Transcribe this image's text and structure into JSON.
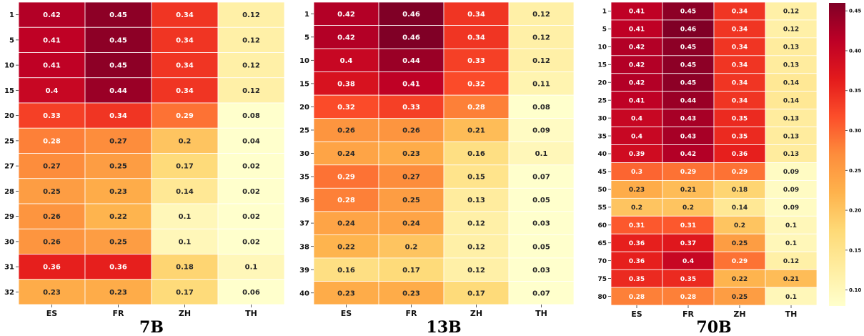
{
  "chart_data": [
    {
      "type": "heatmap",
      "title": "7B",
      "x_categories": [
        "ES",
        "FR",
        "ZH",
        "TH"
      ],
      "y_categories": [
        "1",
        "5",
        "10",
        "15",
        "20",
        "25",
        "27",
        "28",
        "29",
        "30",
        "31",
        "32"
      ],
      "values": [
        [
          0.42,
          0.45,
          0.34,
          0.12
        ],
        [
          0.41,
          0.45,
          0.34,
          0.12
        ],
        [
          0.41,
          0.45,
          0.34,
          0.12
        ],
        [
          0.4,
          0.44,
          0.34,
          0.12
        ],
        [
          0.33,
          0.34,
          0.29,
          0.08
        ],
        [
          0.28,
          0.27,
          0.2,
          0.04
        ],
        [
          0.27,
          0.25,
          0.17,
          0.02
        ],
        [
          0.25,
          0.23,
          0.14,
          0.02
        ],
        [
          0.26,
          0.22,
          0.1,
          0.02
        ],
        [
          0.26,
          0.25,
          0.1,
          0.02
        ],
        [
          0.36,
          0.36,
          0.18,
          0.1
        ],
        [
          0.23,
          0.23,
          0.17,
          0.06
        ]
      ]
    },
    {
      "type": "heatmap",
      "title": "13B",
      "x_categories": [
        "ES",
        "FR",
        "ZH",
        "TH"
      ],
      "y_categories": [
        "1",
        "5",
        "10",
        "15",
        "20",
        "25",
        "30",
        "35",
        "36",
        "37",
        "38",
        "39",
        "40"
      ],
      "values": [
        [
          0.42,
          0.46,
          0.34,
          0.12
        ],
        [
          0.42,
          0.46,
          0.34,
          0.12
        ],
        [
          0.4,
          0.44,
          0.33,
          0.12
        ],
        [
          0.38,
          0.41,
          0.32,
          0.11
        ],
        [
          0.32,
          0.33,
          0.28,
          0.08
        ],
        [
          0.26,
          0.26,
          0.21,
          0.09
        ],
        [
          0.24,
          0.23,
          0.16,
          0.1
        ],
        [
          0.29,
          0.27,
          0.15,
          0.07
        ],
        [
          0.28,
          0.25,
          0.13,
          0.05
        ],
        [
          0.24,
          0.24,
          0.12,
          0.03
        ],
        [
          0.22,
          0.2,
          0.12,
          0.05
        ],
        [
          0.16,
          0.17,
          0.12,
          0.03
        ],
        [
          0.23,
          0.23,
          0.17,
          0.07
        ]
      ]
    },
    {
      "type": "heatmap",
      "title": "70B",
      "x_categories": [
        "ES",
        "FR",
        "ZH",
        "TH"
      ],
      "y_categories": [
        "1",
        "5",
        "10",
        "15",
        "20",
        "25",
        "30",
        "35",
        "40",
        "45",
        "50",
        "55",
        "60",
        "65",
        "70",
        "75",
        "80"
      ],
      "values": [
        [
          0.41,
          0.45,
          0.34,
          0.12
        ],
        [
          0.41,
          0.46,
          0.34,
          0.12
        ],
        [
          0.42,
          0.45,
          0.34,
          0.13
        ],
        [
          0.42,
          0.45,
          0.34,
          0.13
        ],
        [
          0.42,
          0.45,
          0.34,
          0.14
        ],
        [
          0.41,
          0.44,
          0.34,
          0.14
        ],
        [
          0.4,
          0.43,
          0.35,
          0.13
        ],
        [
          0.4,
          0.43,
          0.35,
          0.13
        ],
        [
          0.39,
          0.42,
          0.36,
          0.13
        ],
        [
          0.3,
          0.29,
          0.29,
          0.09
        ],
        [
          0.23,
          0.21,
          0.18,
          0.09
        ],
        [
          0.2,
          0.2,
          0.14,
          0.09
        ],
        [
          0.31,
          0.31,
          0.2,
          0.1
        ],
        [
          0.36,
          0.37,
          0.25,
          0.1
        ],
        [
          0.36,
          0.4,
          0.29,
          0.12
        ],
        [
          0.35,
          0.35,
          0.22,
          0.21
        ],
        [
          0.28,
          0.28,
          0.25,
          0.1
        ]
      ]
    }
  ],
  "colorbar": {
    "colormap": "YlOrRd",
    "range": [
      0.08,
      0.46
    ],
    "ticks": [
      "0.10",
      "0.15",
      "0.20",
      "0.25",
      "0.30",
      "0.35",
      "0.40",
      "0.45"
    ]
  }
}
